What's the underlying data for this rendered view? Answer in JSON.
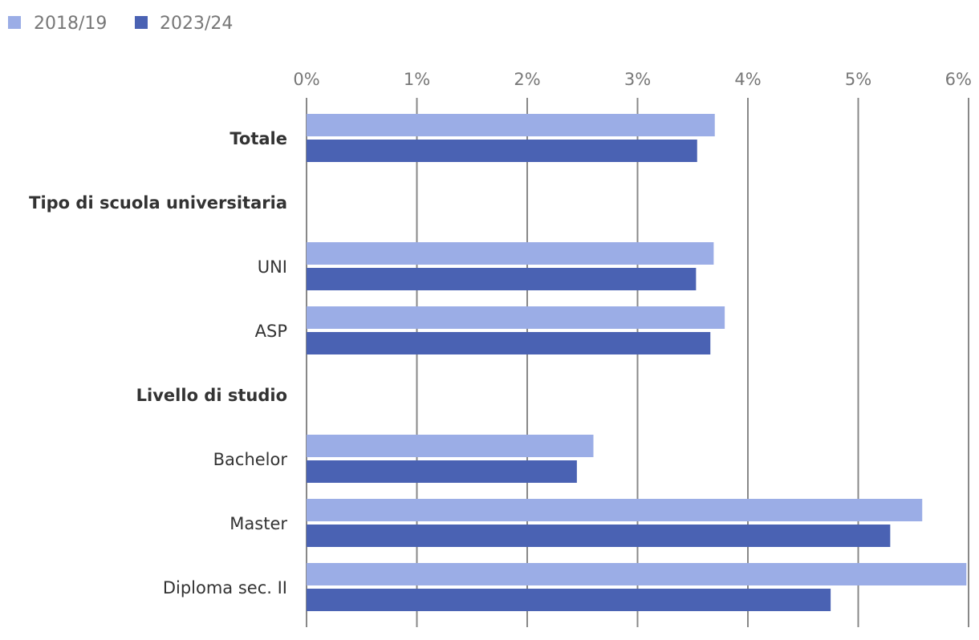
{
  "chart_data": {
    "type": "bar",
    "orientation": "horizontal",
    "legend": {
      "placement": "top-left",
      "entries": [
        "2018/19",
        "2023/24"
      ]
    },
    "colors": {
      "2018/19": "#9badE6",
      "2023/24": "#4a62b3",
      "grid": "#888888"
    },
    "xlim": [
      0,
      6
    ],
    "xticks": [
      "0%",
      "1%",
      "2%",
      "3%",
      "4%",
      "5%",
      "6%"
    ],
    "grid": true,
    "categories": [
      {
        "label": "Totale",
        "header": true,
        "values": [
          3.7,
          3.54
        ]
      },
      {
        "label": "Tipo di scuola universitaria",
        "header": true,
        "values": null
      },
      {
        "label": "UNI",
        "header": false,
        "values": [
          3.69,
          3.53
        ]
      },
      {
        "label": "ASP",
        "header": false,
        "values": [
          3.79,
          3.66
        ]
      },
      {
        "label": "Livello di studio",
        "header": true,
        "values": null
      },
      {
        "label": "Bachelor",
        "header": false,
        "values": [
          2.6,
          2.45
        ]
      },
      {
        "label": "Master",
        "header": false,
        "values": [
          5.58,
          5.29
        ]
      },
      {
        "label": "Diploma sec. II",
        "header": false,
        "values": [
          5.98,
          4.75
        ]
      }
    ],
    "series": [
      {
        "name": "2018/19"
      },
      {
        "name": "2023/24"
      }
    ]
  }
}
